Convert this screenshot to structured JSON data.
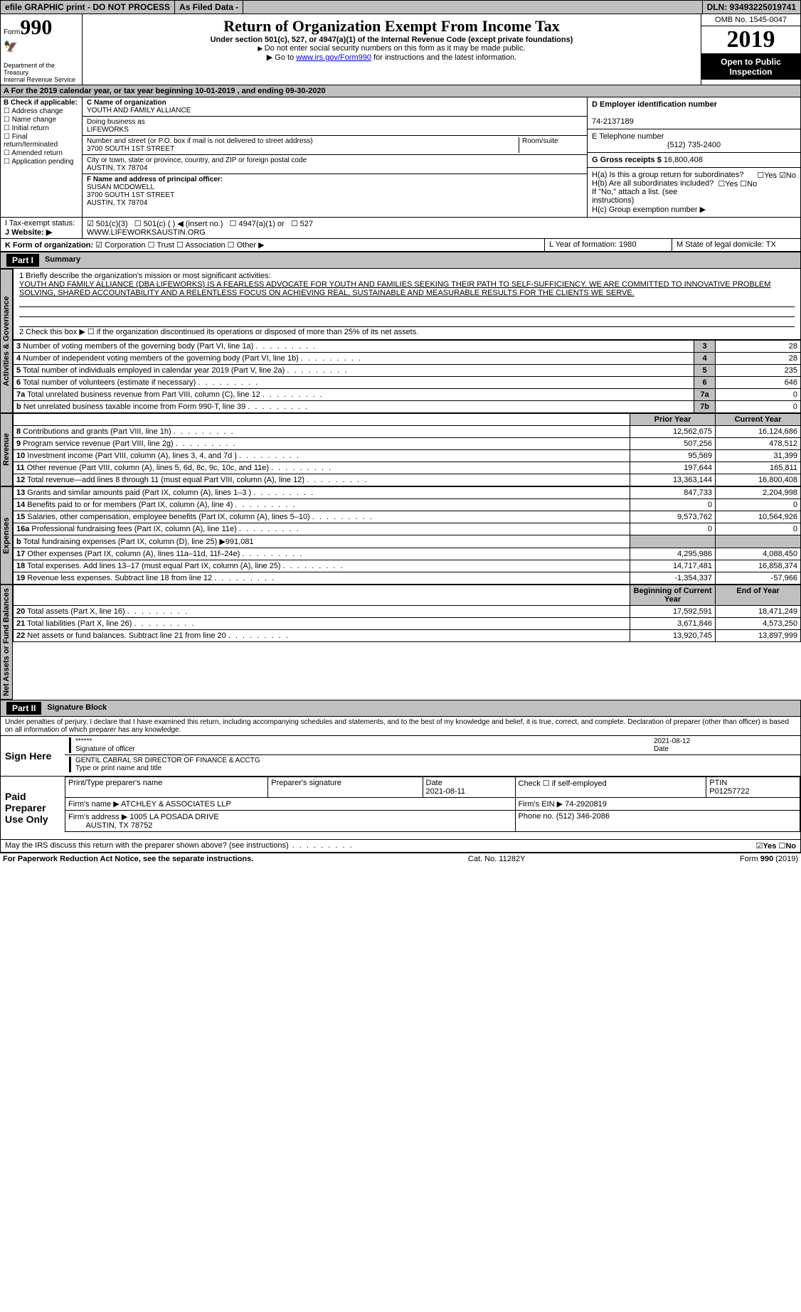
{
  "topbar": {
    "efile": "efile GRAPHIC print - DO NOT PROCESS",
    "asfiled": "As Filed Data -",
    "dln": "DLN: 93493225019741"
  },
  "header": {
    "form_prefix": "Form",
    "form_num": "990",
    "dept1": "Department of the Treasury",
    "dept2": "Internal Revenue Service",
    "title": "Return of Organization Exempt From Income Tax",
    "subtitle": "Under section 501(c), 527, or 4947(a)(1) of the Internal Revenue Code (except private foundations)",
    "note1": "Do not enter social security numbers on this form as it may be made public.",
    "note2_pre": "Go to ",
    "note2_link": "www.irs.gov/Form990",
    "note2_post": " for instructions and the latest information.",
    "omb": "OMB No. 1545-0047",
    "year": "2019",
    "open": "Open to Public Inspection"
  },
  "rowA": "A  For the 2019 calendar year, or tax year beginning 10-01-2019  , and ending 09-30-2020",
  "colB": {
    "label": "B Check if applicable:",
    "items": [
      "Address change",
      "Name change",
      "Initial return",
      "Final return/terminated",
      "Amended return",
      "Application pending"
    ]
  },
  "org": {
    "name_label": "C Name of organization",
    "name": "YOUTH AND FAMILY ALLIANCE",
    "dba_label": "Doing business as",
    "dba": "LIFEWORKS",
    "addr_label": "Number and street (or P.O. box if mail is not delivered to street address)",
    "addr": "3700 SOUTH 1ST STREET",
    "room_label": "Room/suite",
    "city_label": "City or town, state or province, country, and ZIP or foreign postal code",
    "city": "AUSTIN, TX  78704",
    "officer_label": "F  Name and address of principal officer:",
    "officer_name": "SUSAN MCDOWELL",
    "officer_addr": "3700 SOUTH 1ST STREET",
    "officer_city": "AUSTIN, TX  78704"
  },
  "right": {
    "ein_label": "D Employer identification number",
    "ein": "74-2137189",
    "tel_label": "E Telephone number",
    "tel": "(512) 735-2400",
    "receipts_label": "G Gross receipts $",
    "receipts": "16,800,408",
    "ha": "H(a)  Is this a group return for subordinates?",
    "hb": "H(b)  Are all subordinates included?",
    "hb_note": "If \"No,\" attach a list. (see instructions)",
    "hc": "H(c)  Group exemption number ▶"
  },
  "rowI": {
    "label": "I  Tax-exempt status:",
    "c3": "501(c)(3)",
    "c": "501(c) (  ) ◀ (insert no.)",
    "a1": "4947(a)(1) or",
    "s527": "527"
  },
  "rowJ": {
    "label": "J  Website: ▶",
    "val": "WWW.LIFEWORKSAUSTIN.ORG"
  },
  "rowK": {
    "label": "K Form of organization:",
    "corp": "Corporation",
    "trust": "Trust",
    "assoc": "Association",
    "other": "Other ▶",
    "L": "L Year of formation: 1980",
    "M": "M State of legal domicile: TX"
  },
  "part1": {
    "num": "Part I",
    "title": "Summary"
  },
  "mission": {
    "q1": "1 Briefly describe the organization's mission or most significant activities:",
    "text": "YOUTH AND FAMILY ALLIANCE (DBA LIFEWORKS) IS A FEARLESS ADVOCATE FOR YOUTH AND FAMILIES SEEKING THEIR PATH TO SELF-SUFFICIENCY. WE ARE COMMITTED TO INNOVATIVE PROBLEM SOLVING, SHARED ACCOUNTABILITY AND A RELENTLESS FOCUS ON ACHIEVING REAL, SUSTAINABLE AND MEASURABLE RESULTS FOR THE CLIENTS WE SERVE.",
    "q2": "2  Check this box ▶ ☐ if the organization discontinued its operations or disposed of more than 25% of its net assets."
  },
  "sections": {
    "activities": "Activities & Governance",
    "revenue": "Revenue",
    "expenses": "Expenses",
    "netassets": "Net Assets or Fund Balances"
  },
  "lines": [
    {
      "n": "3",
      "t": "Number of voting members of the governing body (Part VI, line 1a)",
      "k": "3",
      "v": "28"
    },
    {
      "n": "4",
      "t": "Number of independent voting members of the governing body (Part VI, line 1b)",
      "k": "4",
      "v": "28"
    },
    {
      "n": "5",
      "t": "Total number of individuals employed in calendar year 2019 (Part V, line 2a)",
      "k": "5",
      "v": "235"
    },
    {
      "n": "6",
      "t": "Total number of volunteers (estimate if necessary)",
      "k": "6",
      "v": "646"
    },
    {
      "n": "7a",
      "t": "Total unrelated business revenue from Part VIII, column (C), line 12",
      "k": "7a",
      "v": "0"
    },
    {
      "n": "b",
      "t": "Net unrelated business taxable income from Form 990-T, line 39",
      "k": "7b",
      "v": "0"
    }
  ],
  "yearHeaders": {
    "prior": "Prior Year",
    "current": "Current Year"
  },
  "revenue": [
    {
      "n": "8",
      "t": "Contributions and grants (Part VIII, line 1h)",
      "p": "12,562,675",
      "c": "16,124,686"
    },
    {
      "n": "9",
      "t": "Program service revenue (Part VIII, line 2g)",
      "p": "507,256",
      "c": "478,512"
    },
    {
      "n": "10",
      "t": "Investment income (Part VIII, column (A), lines 3, 4, and 7d )",
      "p": "95,569",
      "c": "31,399"
    },
    {
      "n": "11",
      "t": "Other revenue (Part VIII, column (A), lines 5, 6d, 8c, 9c, 10c, and 11e)",
      "p": "197,644",
      "c": "165,811"
    },
    {
      "n": "12",
      "t": "Total revenue—add lines 8 through 11 (must equal Part VIII, column (A), line 12)",
      "p": "13,363,144",
      "c": "16,800,408"
    }
  ],
  "expenses": [
    {
      "n": "13",
      "t": "Grants and similar amounts paid (Part IX, column (A), lines 1–3 )",
      "p": "847,733",
      "c": "2,204,998"
    },
    {
      "n": "14",
      "t": "Benefits paid to or for members (Part IX, column (A), line 4)",
      "p": "0",
      "c": "0"
    },
    {
      "n": "15",
      "t": "Salaries, other compensation, employee benefits (Part IX, column (A), lines 5–10)",
      "p": "9,573,762",
      "c": "10,564,926"
    },
    {
      "n": "16a",
      "t": "Professional fundraising fees (Part IX, column (A), line 11e)",
      "p": "0",
      "c": "0"
    },
    {
      "n": "b",
      "t": "Total fundraising expenses (Part IX, column (D), line 25) ▶991,081",
      "p": "",
      "c": "",
      "shaded": true
    },
    {
      "n": "17",
      "t": "Other expenses (Part IX, column (A), lines 11a–11d, 11f–24e)",
      "p": "4,295,986",
      "c": "4,088,450"
    },
    {
      "n": "18",
      "t": "Total expenses. Add lines 13–17 (must equal Part IX, column (A), line 25)",
      "p": "14,717,481",
      "c": "16,858,374"
    },
    {
      "n": "19",
      "t": "Revenue less expenses. Subtract line 18 from line 12",
      "p": "-1,354,337",
      "c": "-57,966"
    }
  ],
  "netHeaders": {
    "prior": "Beginning of Current Year",
    "current": "End of Year"
  },
  "netassets": [
    {
      "n": "20",
      "t": "Total assets (Part X, line 16)",
      "p": "17,592,591",
      "c": "18,471,249"
    },
    {
      "n": "21",
      "t": "Total liabilities (Part X, line 26)",
      "p": "3,671,846",
      "c": "4,573,250"
    },
    {
      "n": "22",
      "t": "Net assets or fund balances. Subtract line 21 from line 20",
      "p": "13,920,745",
      "c": "13,897,999"
    }
  ],
  "part2": {
    "num": "Part II",
    "title": "Signature Block"
  },
  "sig": {
    "decl": "Under penalties of perjury, I declare that I have examined this return, including accompanying schedules and statements, and to the best of my knowledge and belief, it is true, correct, and complete. Declaration of preparer (other than officer) is based on all information of which preparer has any knowledge.",
    "sign_here": "Sign Here",
    "stars": "******",
    "sig_officer": "Signature of officer",
    "date1": "2021-08-12",
    "date_lbl": "Date",
    "name": "GENTIL CABRAL SR DIRECTOR OF FINANCE & ACCTG",
    "name_lbl": "Type or print name and title",
    "paid": "Paid Preparer Use Only",
    "prep_name_lbl": "Print/Type preparer's name",
    "prep_sig_lbl": "Preparer's signature",
    "date2_lbl": "Date",
    "date2": "2021-08-11",
    "check_lbl": "Check ☐ if self-employed",
    "ptin_lbl": "PTIN",
    "ptin": "P01257722",
    "firm_name_lbl": "Firm's name   ▶",
    "firm_name": "ATCHLEY & ASSOCIATES LLP",
    "firm_ein_lbl": "Firm's EIN ▶",
    "firm_ein": "74-2920819",
    "firm_addr_lbl": "Firm's address ▶",
    "firm_addr": "1005 LA POSADA DRIVE",
    "firm_city": "AUSTIN, TX  78752",
    "phone_lbl": "Phone no.",
    "phone": "(512) 346-2086",
    "discuss": "May the IRS discuss this return with the preparer shown above? (see instructions)",
    "yes": "Yes",
    "no": "No"
  },
  "footer": {
    "left": "For Paperwork Reduction Act Notice, see the separate instructions.",
    "mid": "Cat. No. 11282Y",
    "right": "Form 990 (2019)"
  }
}
